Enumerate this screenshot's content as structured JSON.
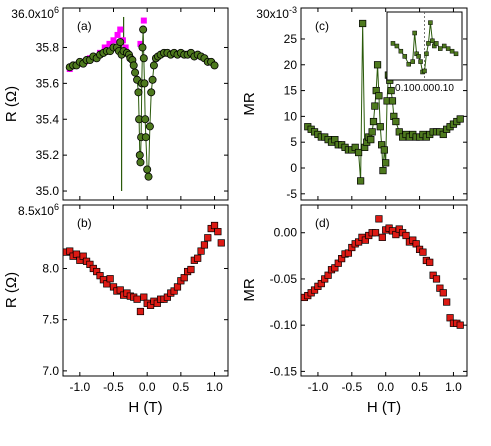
{
  "colors": {
    "pink": "#ff00ff",
    "green": "#4e7a1e",
    "green_line": "#2a5a0a",
    "red": "#dd1a14",
    "marker_edge": "#000000"
  },
  "chart_data": [
    {
      "type": "scatter",
      "panel_label": "(a)",
      "ylabel": "R (Ω)",
      "xlim": [
        -1.25,
        1.2
      ],
      "ylim": [
        34.95,
        36.02
      ],
      "exponent_label": "36.0x10",
      "exponent_sup": "6",
      "yticks": [
        35.0,
        35.2,
        35.4,
        35.6,
        35.8
      ],
      "yticklabels": [
        "35.0",
        "35.2",
        "35.4",
        "35.6",
        "35.8"
      ],
      "series": [
        {
          "marker": "square",
          "color": "pink",
          "x": [
            -1.15,
            -1.08,
            -1.0,
            -0.93,
            -0.85,
            -0.78,
            -0.7,
            -0.63,
            -0.56,
            -0.5,
            -0.44,
            -0.4,
            -0.36,
            -0.32,
            -0.1,
            -0.05
          ],
          "y": [
            35.68,
            35.7,
            35.71,
            35.72,
            35.74,
            35.75,
            35.77,
            35.8,
            35.82,
            35.84,
            35.87,
            35.9,
            35.84,
            35.8,
            35.82,
            35.95
          ]
        },
        {
          "marker": "circle",
          "color": "green",
          "line": true,
          "x": [
            -1.15,
            -1.1,
            -1.05,
            -1.0,
            -0.95,
            -0.9,
            -0.85,
            -0.8,
            -0.75,
            -0.7,
            -0.65,
            -0.6,
            -0.55,
            -0.5,
            -0.45,
            -0.42,
            -0.4,
            -0.38,
            -0.35,
            -0.3,
            -0.27,
            -0.25,
            -0.22,
            -0.2,
            -0.18,
            -0.15,
            -0.13,
            -0.12,
            -0.11,
            -0.1,
            -0.09,
            -0.08,
            -0.07,
            -0.06,
            -0.05,
            -0.04,
            -0.03,
            -0.02,
            0.0,
            0.02,
            0.04,
            0.06,
            0.08,
            0.1,
            0.13,
            0.16,
            0.2,
            0.25,
            0.3,
            0.35,
            0.4,
            0.45,
            0.5,
            0.55,
            0.6,
            0.65,
            0.7,
            0.75,
            0.8,
            0.85,
            0.9,
            0.95,
            1.0
          ],
          "y": [
            35.69,
            35.7,
            35.7,
            35.72,
            35.71,
            35.73,
            35.73,
            35.75,
            35.74,
            35.76,
            35.77,
            35.78,
            35.78,
            35.8,
            35.8,
            35.78,
            35.83,
            35.76,
            35.78,
            35.77,
            35.76,
            35.74,
            35.73,
            35.7,
            35.66,
            35.62,
            35.55,
            35.4,
            35.2,
            35.16,
            35.3,
            35.6,
            35.8,
            35.9,
            35.74,
            35.6,
            35.4,
            35.3,
            35.12,
            35.08,
            35.36,
            35.55,
            35.62,
            35.7,
            35.74,
            35.75,
            35.76,
            35.77,
            35.77,
            35.76,
            35.77,
            35.76,
            35.77,
            35.76,
            35.76,
            35.77,
            35.75,
            35.76,
            35.75,
            35.74,
            35.72,
            35.72,
            35.7
          ]
        }
      ],
      "vertical_line_segments": [
        {
          "x": -0.38,
          "y_from": 35.0,
          "y_to": 35.85
        },
        {
          "x": -0.35,
          "y_from": 35.76,
          "y_to": 35.97
        }
      ]
    },
    {
      "type": "scatter",
      "panel_label": "(b)",
      "ylabel": "R (Ω)",
      "xlabel": "H (T)",
      "xlim": [
        -1.25,
        1.2
      ],
      "ylim": [
        6.95,
        8.62
      ],
      "exponent_label": "8.5x10",
      "exponent_sup": "6",
      "yticks": [
        7.0,
        7.5,
        8.0
      ],
      "yticklabels": [
        "7.0",
        "7.5",
        "8.0"
      ],
      "xticks": [
        -1.0,
        -0.5,
        0.0,
        0.5,
        1.0
      ],
      "xticklabels": [
        "-1.0",
        "-0.5",
        "0.0",
        "0.5",
        "1.0"
      ],
      "series": [
        {
          "marker": "square",
          "color": "red",
          "x": [
            -1.2,
            -1.15,
            -1.1,
            -1.05,
            -1.0,
            -0.95,
            -0.9,
            -0.85,
            -0.8,
            -0.75,
            -0.7,
            -0.65,
            -0.6,
            -0.55,
            -0.5,
            -0.45,
            -0.4,
            -0.35,
            -0.3,
            -0.25,
            -0.2,
            -0.15,
            -0.1,
            -0.05,
            0.0,
            0.05,
            0.1,
            0.15,
            0.2,
            0.25,
            0.3,
            0.35,
            0.4,
            0.45,
            0.5,
            0.55,
            0.6,
            0.65,
            0.7,
            0.75,
            0.8,
            0.85,
            0.9,
            0.95,
            1.0,
            1.05,
            1.1
          ],
          "y": [
            8.16,
            8.17,
            8.12,
            8.14,
            8.08,
            8.12,
            8.07,
            8.04,
            8.0,
            7.97,
            7.93,
            7.89,
            7.85,
            7.9,
            7.82,
            7.78,
            7.79,
            7.74,
            7.76,
            7.73,
            7.72,
            7.7,
            7.58,
            7.72,
            7.66,
            7.64,
            7.68,
            7.66,
            7.7,
            7.7,
            7.72,
            7.76,
            7.78,
            7.82,
            7.88,
            7.91,
            7.97,
            7.99,
            8.08,
            8.1,
            8.17,
            8.23,
            8.3,
            8.39,
            8.42,
            8.36,
            8.25
          ]
        }
      ]
    },
    {
      "type": "scatter",
      "panel_label": "(c)",
      "ylabel": "MR",
      "xlim": [
        -1.25,
        1.2
      ],
      "ylim": [
        -6.2,
        31.0
      ],
      "exponent_label": "30x10",
      "exponent_sup": "-3",
      "yticks": [
        -5,
        0,
        5,
        10,
        15,
        20,
        25
      ],
      "yticklabels": [
        "-5",
        "0",
        "5",
        "10",
        "15",
        "20",
        "25"
      ],
      "series": [
        {
          "marker": "square",
          "color": "green",
          "line": true,
          "x": [
            -1.15,
            -1.1,
            -1.05,
            -1.0,
            -0.95,
            -0.9,
            -0.85,
            -0.8,
            -0.75,
            -0.7,
            -0.65,
            -0.6,
            -0.55,
            -0.5,
            -0.45,
            -0.4,
            -0.37,
            -0.34,
            -0.31,
            -0.28,
            -0.25,
            -0.22,
            -0.2,
            -0.18,
            -0.16,
            -0.14,
            -0.12,
            -0.1,
            -0.08,
            -0.06,
            -0.04,
            -0.02,
            0.0,
            0.02,
            0.04,
            0.06,
            0.08,
            0.1,
            0.12,
            0.15,
            0.2,
            0.25,
            0.3,
            0.35,
            0.4,
            0.45,
            0.5,
            0.55,
            0.6,
            0.65,
            0.7,
            0.75,
            0.8,
            0.85,
            0.9,
            0.95,
            1.0,
            1.05,
            1.1
          ],
          "y": [
            8.0,
            7.5,
            7.0,
            6.5,
            6.0,
            6.0,
            5.5,
            5.0,
            5.5,
            4.5,
            4.5,
            4.0,
            3.5,
            3.5,
            4.0,
            3.0,
            -2.5,
            28.0,
            4.0,
            5.0,
            6.0,
            5.5,
            7.0,
            9.0,
            12.0,
            15.0,
            20.0,
            14.0,
            8.0,
            4.5,
            -0.5,
            3.5,
            1.0,
            13.0,
            18.0,
            17.0,
            15.0,
            13.0,
            10.0,
            9.0,
            7.0,
            6.0,
            6.5,
            6.0,
            6.5,
            6.0,
            6.0,
            6.5,
            6.0,
            6.5,
            7.0,
            7.0,
            7.0,
            6.5,
            7.5,
            8.0,
            8.5,
            9.0,
            9.5
          ]
        }
      ],
      "inset": {
        "xticklabels": [
          "0.10",
          "0.00",
          "0.10"
        ],
        "x": [
          -0.16,
          -0.14,
          -0.12,
          -0.1,
          -0.08,
          -0.06,
          -0.05,
          -0.04,
          -0.03,
          -0.02,
          -0.01,
          0.0,
          0.01,
          0.02,
          0.03,
          0.04,
          0.05,
          0.06,
          0.08,
          0.1,
          0.12,
          0.14,
          0.16
        ],
        "y": [
          0.55,
          0.5,
          0.4,
          0.3,
          0.15,
          0.2,
          0.75,
          0.35,
          0.3,
          0.2,
          0.0,
          0.02,
          0.35,
          0.55,
          0.95,
          0.6,
          0.5,
          0.55,
          0.45,
          0.5,
          0.45,
          0.4,
          0.35
        ]
      }
    },
    {
      "type": "scatter",
      "panel_label": "(d)",
      "ylabel": "MR",
      "xlabel": "H (T)",
      "xlim": [
        -1.25,
        1.2
      ],
      "ylim": [
        -0.155,
        0.03
      ],
      "yticks": [
        -0.15,
        -0.1,
        -0.05,
        0.0
      ],
      "yticklabels": [
        "-0.15",
        "-0.10",
        "-0.05",
        "0.00"
      ],
      "xticks": [
        -1.0,
        -0.5,
        0.0,
        0.5,
        1.0
      ],
      "xticklabels": [
        "-1.0",
        "-0.5",
        "0.0",
        "0.5",
        "1.0"
      ],
      "series": [
        {
          "marker": "square",
          "color": "red",
          "x": [
            -1.2,
            -1.15,
            -1.1,
            -1.05,
            -1.0,
            -0.95,
            -0.9,
            -0.85,
            -0.8,
            -0.75,
            -0.7,
            -0.65,
            -0.6,
            -0.55,
            -0.5,
            -0.45,
            -0.4,
            -0.35,
            -0.3,
            -0.25,
            -0.2,
            -0.15,
            -0.1,
            -0.05,
            0.0,
            0.05,
            0.1,
            0.15,
            0.2,
            0.25,
            0.3,
            0.35,
            0.4,
            0.45,
            0.5,
            0.55,
            0.6,
            0.65,
            0.7,
            0.75,
            0.8,
            0.85,
            0.9,
            0.95,
            1.0,
            1.05,
            1.1
          ],
          "y": [
            -0.07,
            -0.068,
            -0.065,
            -0.062,
            -0.058,
            -0.055,
            -0.05,
            -0.046,
            -0.04,
            -0.038,
            -0.033,
            -0.028,
            -0.023,
            -0.022,
            -0.016,
            -0.012,
            -0.01,
            -0.005,
            -0.008,
            -0.003,
            0.0,
            0.0,
            0.015,
            -0.005,
            0.003,
            0.005,
            0.002,
            -0.002,
            0.004,
            0.0,
            -0.003,
            -0.01,
            -0.008,
            -0.012,
            -0.018,
            -0.021,
            -0.03,
            -0.032,
            -0.046,
            -0.05,
            -0.06,
            -0.065,
            -0.075,
            -0.092,
            -0.098,
            -0.098,
            -0.1
          ]
        }
      ]
    }
  ]
}
